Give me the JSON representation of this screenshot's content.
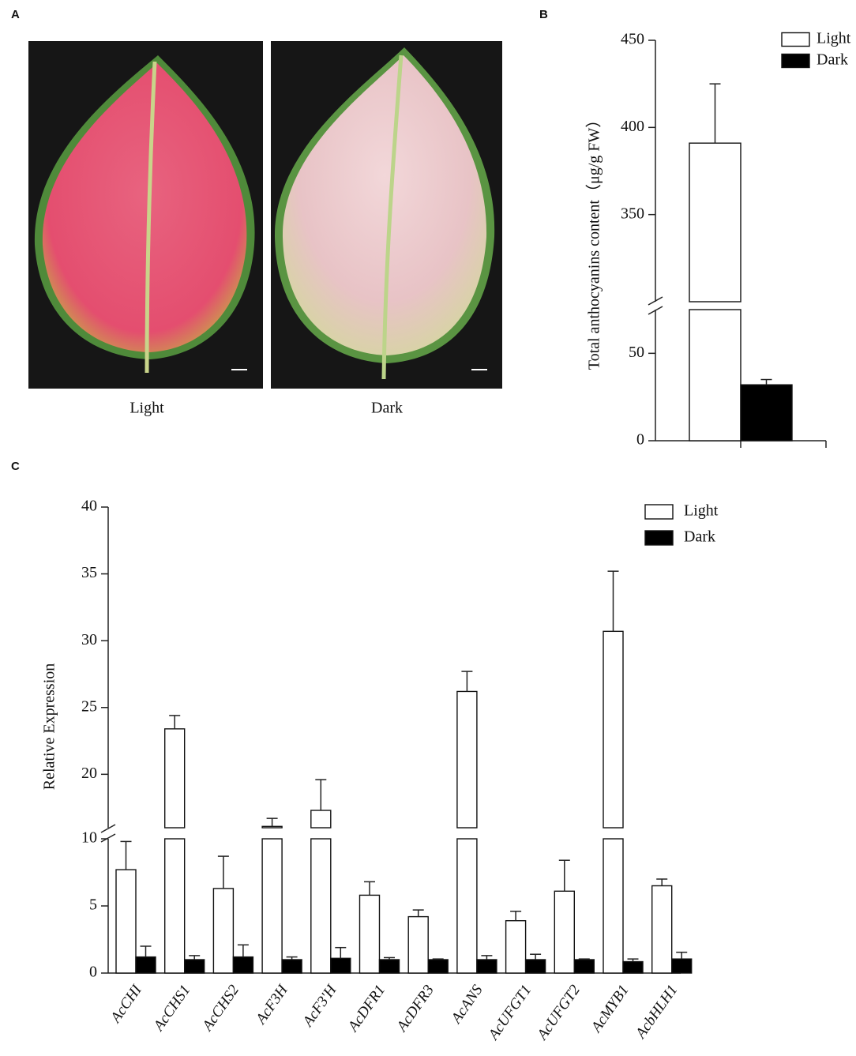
{
  "panel_labels": [
    "A",
    "B",
    "C"
  ],
  "photo_labels": [
    "Light",
    "Dark"
  ],
  "chart_data": [
    {
      "type": "bar",
      "y_label": "Total anthocyanins content（μg/g FW）",
      "categories": [
        null
      ],
      "ylim": [
        0,
        450
      ],
      "axis_break": [
        75,
        300
      ],
      "yticks": [
        0,
        50,
        350,
        400,
        450
      ],
      "series": [
        {
          "name": "Light",
          "color": "#ffffff",
          "values": [
            391
          ],
          "errors": [
            34
          ]
        },
        {
          "name": "Dark",
          "color": "#000000",
          "values": [
            32
          ],
          "errors": [
            3
          ]
        }
      ]
    },
    {
      "type": "bar",
      "y_label": "Relative Expression",
      "categories": [
        "AcCHI",
        "AcCHS1",
        "AcCHS2",
        "AcF3H",
        "AcF3'H",
        "AcDFR1",
        "AcDFR3",
        "AcANS",
        "AcUFGT1",
        "AcUFGT2",
        "AcMYB1",
        "AcbHLH1"
      ],
      "ylim": [
        0,
        40
      ],
      "axis_break": [
        10,
        16
      ],
      "yticks": [
        0,
        5,
        10,
        20,
        25,
        30,
        35,
        40
      ],
      "series": [
        {
          "name": "Light",
          "color": "#ffffff",
          "values": [
            7.7,
            23.4,
            6.3,
            16.1,
            17.3,
            5.8,
            4.2,
            26.2,
            3.9,
            6.1,
            30.7,
            6.5
          ],
          "errors": [
            2.1,
            1.0,
            2.4,
            0.6,
            2.3,
            1.0,
            0.5,
            1.5,
            0.7,
            2.3,
            4.5,
            0.5
          ]
        },
        {
          "name": "Dark",
          "color": "#000000",
          "values": [
            1.2,
            1.0,
            1.2,
            1.0,
            1.1,
            1.0,
            1.0,
            1.0,
            1.0,
            1.0,
            0.85,
            1.05
          ],
          "errors": [
            0.8,
            0.3,
            0.9,
            0.2,
            0.8,
            0.15,
            0.05,
            0.3,
            0.4,
            0.05,
            0.2,
            0.5
          ]
        }
      ]
    }
  ]
}
